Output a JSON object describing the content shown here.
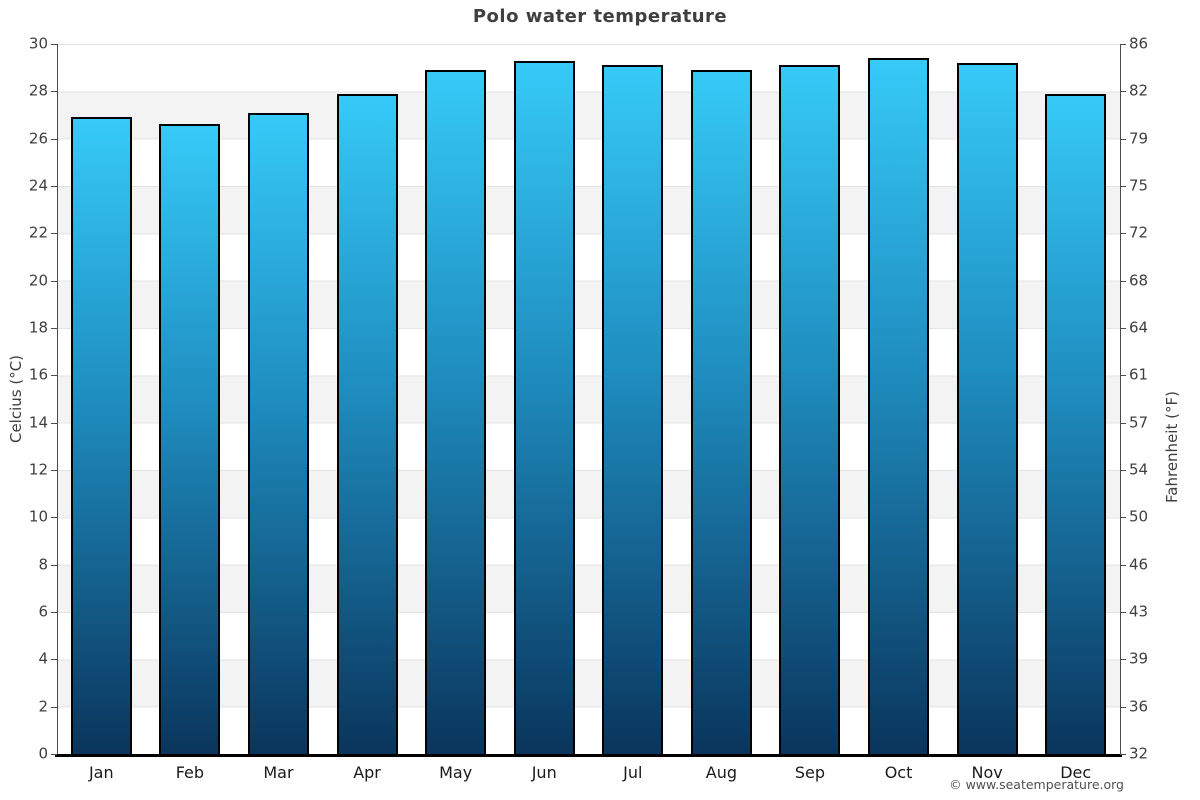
{
  "title": "Polo water temperature",
  "y_left": {
    "label": "Celcius (°C)",
    "ticks": [
      "30",
      "28",
      "26",
      "24",
      "22",
      "20",
      "18",
      "16",
      "14",
      "12",
      "10",
      "8",
      "6",
      "4",
      "2",
      "0"
    ]
  },
  "y_right": {
    "label": "Fahrenheit (°F)",
    "ticks": [
      "86",
      "82",
      "79",
      "75",
      "72",
      "68",
      "64",
      "61",
      "57",
      "54",
      "50",
      "46",
      "43",
      "39",
      "36",
      "32"
    ]
  },
  "footer": "© www.seatemperature.org",
  "colors": {
    "bar_top": "#36CAF8",
    "bar_mid": "#1E8CBE",
    "bar_bottom": "#0A355C",
    "bar_border": "#000000",
    "band_gray": "#F3F3F3",
    "grid_line": "#E3E3E3",
    "axis_line": "#4D4D4D",
    "title": "#3F3F3F",
    "tick": "#3F3F3F",
    "month": "#1A1A1A",
    "footer": "#4F4F4F"
  },
  "chart_data": {
    "type": "bar",
    "title": "Polo water temperature",
    "categories": [
      "Jan",
      "Feb",
      "Mar",
      "Apr",
      "May",
      "Jun",
      "Jul",
      "Aug",
      "Sep",
      "Oct",
      "Nov",
      "Dec"
    ],
    "values": [
      26.9,
      26.6,
      27.1,
      27.9,
      28.9,
      29.3,
      29.1,
      28.9,
      29.1,
      29.4,
      29.2,
      27.9
    ],
    "unit": "°C",
    "xlabel": "",
    "ylabel_left": "Celcius (°C)",
    "ylabel_right": "Fahrenheit (°F)",
    "ylim": [
      0,
      30
    ],
    "y_ticks_celsius": [
      30,
      28,
      26,
      24,
      22,
      20,
      18,
      16,
      14,
      12,
      10,
      8,
      6,
      4,
      2,
      0
    ],
    "y_ticks_fahrenheit": [
      86,
      82,
      79,
      75,
      72,
      68,
      64,
      61,
      57,
      54,
      50,
      46,
      43,
      39,
      36,
      32
    ],
    "grid": "horizontal-bands-alternating",
    "legend": "none",
    "bar_style": "vertical-gradient-cyan-to-navy-black-outline"
  }
}
